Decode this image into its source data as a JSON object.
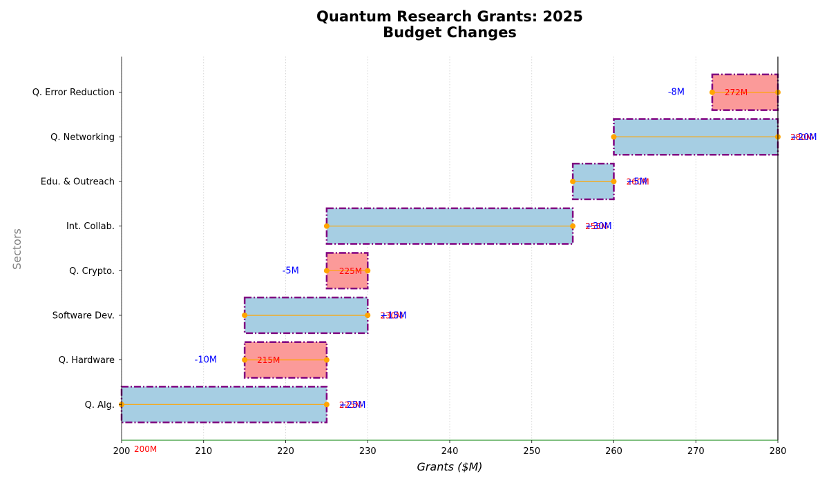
{
  "chart_data": {
    "type": "waterfall",
    "title": "Quantum Research Grants: 2025",
    "subtitle": "Budget Changes",
    "xlabel": "Grants ($M)",
    "ylabel": "Sectors",
    "xlim": [
      200,
      280
    ],
    "xticks": [
      200,
      210,
      220,
      230,
      240,
      250,
      260,
      270,
      280
    ],
    "grid": true,
    "start_label": "200M",
    "categories": [
      "Q. Alg.",
      "Q. Hardware",
      "Software Dev.",
      "Q. Crypto.",
      "Int. Collab.",
      "Edu. & Outreach",
      "Q. Networking",
      "Q. Error Reduction"
    ],
    "steps": [
      {
        "sector": "Q. Alg.",
        "start": 200,
        "end": 225,
        "change_label": "+25M",
        "total_label": "225M"
      },
      {
        "sector": "Q. Hardware",
        "start": 225,
        "end": 215,
        "change_label": "-10M",
        "total_label": "215M"
      },
      {
        "sector": "Software Dev.",
        "start": 215,
        "end": 230,
        "change_label": "+15M",
        "total_label": "230M"
      },
      {
        "sector": "Q. Crypto.",
        "start": 230,
        "end": 225,
        "change_label": "-5M",
        "total_label": "225M"
      },
      {
        "sector": "Int. Collab.",
        "start": 225,
        "end": 255,
        "change_label": "+30M",
        "total_label": "255M"
      },
      {
        "sector": "Edu. & Outreach",
        "start": 255,
        "end": 260,
        "change_label": "+5M",
        "total_label": "260M"
      },
      {
        "sector": "Q. Networking",
        "start": 260,
        "end": 280,
        "change_label": "+20M",
        "total_label": "280M"
      },
      {
        "sector": "Q. Error Reduction",
        "start": 280,
        "end": 272,
        "change_label": "-8M",
        "total_label": "272M"
      }
    ],
    "colors": {
      "increase": "#a6cee3",
      "decrease": "#fb9a99",
      "edge": "#800080",
      "connector": "#ffa500",
      "change_text": "#0000ff",
      "total_text": "#ff0000",
      "x_axis": "#008000"
    }
  }
}
